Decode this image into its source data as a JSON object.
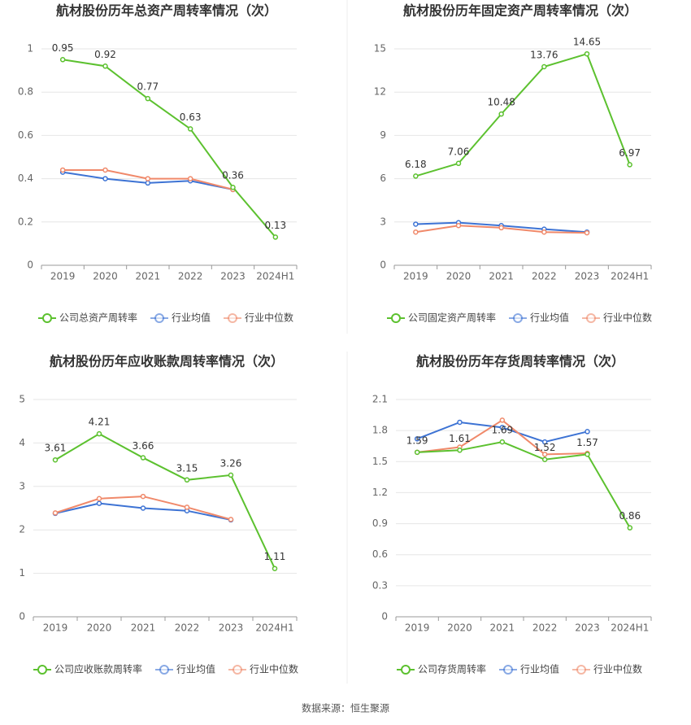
{
  "chart_data": [
    {
      "type": "line",
      "title": "航材股份历年总资产周转率情况（次）",
      "categories": [
        "2019",
        "2020",
        "2021",
        "2022",
        "2023",
        "2024H1"
      ],
      "series": [
        {
          "name": "公司总资产周转率",
          "color": "#5cc12f",
          "values": [
            0.95,
            0.92,
            0.77,
            0.63,
            0.36,
            0.13
          ]
        },
        {
          "name": "行业均值",
          "color": "#3d73d4",
          "values": [
            0.43,
            0.4,
            0.38,
            0.39,
            0.35,
            null
          ]
        },
        {
          "name": "行业中位数",
          "color": "#f0896a",
          "values": [
            0.44,
            0.44,
            0.4,
            0.4,
            0.35,
            null
          ]
        }
      ],
      "ylim": [
        0,
        1
      ],
      "yticks": [
        0,
        0.2,
        0.4,
        0.6,
        0.8,
        1
      ],
      "grid": true,
      "legend": "bottom"
    },
    {
      "type": "line",
      "title": "航材股份历年固定资产周转率情况（次）",
      "categories": [
        "2019",
        "2020",
        "2021",
        "2022",
        "2023",
        "2024H1"
      ],
      "series": [
        {
          "name": "公司固定资产周转率",
          "color": "#5cc12f",
          "values": [
            6.18,
            7.06,
            10.48,
            13.76,
            14.65,
            6.97
          ]
        },
        {
          "name": "行业均值",
          "color": "#3d73d4",
          "values": [
            2.85,
            2.95,
            2.75,
            2.5,
            2.3,
            null
          ]
        },
        {
          "name": "行业中位数",
          "color": "#f0896a",
          "values": [
            2.3,
            2.75,
            2.6,
            2.3,
            2.25,
            null
          ]
        }
      ],
      "ylim": [
        0,
        15
      ],
      "yticks": [
        0,
        3,
        6,
        9,
        12,
        15
      ],
      "grid": true,
      "legend": "bottom"
    },
    {
      "type": "line",
      "title": "航材股份历年应收账款周转率情况（次）",
      "categories": [
        "2019",
        "2020",
        "2021",
        "2022",
        "2023",
        "2024H1"
      ],
      "series": [
        {
          "name": "公司应收账款周转率",
          "color": "#5cc12f",
          "values": [
            3.61,
            4.21,
            3.66,
            3.15,
            3.26,
            1.11
          ]
        },
        {
          "name": "行业均值",
          "color": "#3d73d4",
          "values": [
            2.38,
            2.61,
            2.5,
            2.44,
            2.23,
            null
          ]
        },
        {
          "name": "行业中位数",
          "color": "#f0896a",
          "values": [
            2.39,
            2.72,
            2.77,
            2.52,
            2.24,
            null
          ]
        }
      ],
      "ylim": [
        0,
        5
      ],
      "yticks": [
        0,
        1,
        2,
        3,
        4,
        5
      ],
      "grid": true,
      "legend": "bottom"
    },
    {
      "type": "line",
      "title": "航材股份历年存货周转率情况（次）",
      "categories": [
        "2019",
        "2020",
        "2021",
        "2022",
        "2023",
        "2024H1"
      ],
      "series": [
        {
          "name": "公司存货周转率",
          "color": "#5cc12f",
          "values": [
            1.59,
            1.61,
            1.69,
            1.52,
            1.57,
            0.86
          ]
        },
        {
          "name": "行业均值",
          "color": "#3d73d4",
          "values": [
            1.72,
            1.88,
            1.83,
            1.69,
            1.79,
            null
          ]
        },
        {
          "name": "行业中位数",
          "color": "#f0896a",
          "values": [
            1.59,
            1.64,
            1.9,
            1.57,
            1.58,
            null
          ]
        }
      ],
      "ylim": [
        0,
        2.1
      ],
      "yticks": [
        0,
        0.3,
        0.6,
        0.9,
        1.2,
        1.5,
        1.8,
        2.1
      ],
      "grid": true,
      "legend": "bottom"
    }
  ],
  "source": "数据来源：恒生聚源"
}
